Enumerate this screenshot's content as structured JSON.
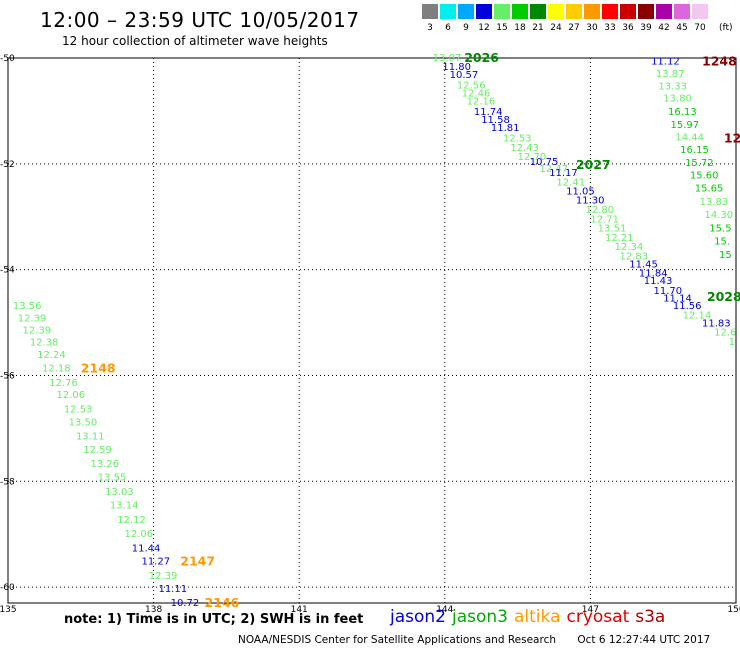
{
  "header": {
    "title": "12:00 – 23:59 UTC 10/05/2017",
    "subtitle": "12 hour collection of altimeter wave heights"
  },
  "scale": {
    "unit": "(ft)",
    "bins": [
      {
        "label": "3",
        "color": "#7f7f7f"
      },
      {
        "label": "6",
        "color": "#00eeee"
      },
      {
        "label": "9",
        "color": "#00a8ff"
      },
      {
        "label": "12",
        "color": "#0000dd"
      },
      {
        "label": "15",
        "color": "#66ee66"
      },
      {
        "label": "18",
        "color": "#00cc00"
      },
      {
        "label": "21",
        "color": "#008800"
      },
      {
        "label": "24",
        "color": "#ffff00"
      },
      {
        "label": "27",
        "color": "#ffcc00"
      },
      {
        "label": "30",
        "color": "#ff9900"
      },
      {
        "label": "33",
        "color": "#ff0000"
      },
      {
        "label": "36",
        "color": "#cc0000"
      },
      {
        "label": "39",
        "color": "#880000"
      },
      {
        "label": "42",
        "color": "#aa00aa"
      },
      {
        "label": "45",
        "color": "#dd66dd"
      },
      {
        "label": "70",
        "color": "#f2c8f2"
      }
    ]
  },
  "map": {
    "lat_ticks": [
      "-50",
      "-52",
      "-54",
      "-56",
      "-58",
      "-60"
    ],
    "lon_ticks": [
      "135",
      "138",
      "141",
      "144",
      "147",
      "150"
    ],
    "lat_range": [
      -50,
      -60.3
    ],
    "lon_range": [
      135,
      150
    ]
  },
  "tracks": [
    {
      "tag": "2148",
      "tag_lon": 136.5,
      "tag_lat": -55.85,
      "tag_color": "#ff9900",
      "points": [
        {
          "v": "13.56",
          "lon": 135.1,
          "lat": -54.67,
          "c": "#66ee66"
        },
        {
          "v": "12.39",
          "lon": 135.2,
          "lat": -54.9,
          "c": "#66ee66"
        },
        {
          "v": "12.39",
          "lon": 135.3,
          "lat": -55.13,
          "c": "#66ee66"
        },
        {
          "v": "12.38",
          "lon": 135.45,
          "lat": -55.36,
          "c": "#66ee66"
        },
        {
          "v": "12.24",
          "lon": 135.6,
          "lat": -55.59,
          "c": "#66ee66"
        },
        {
          "v": "12.18",
          "lon": 135.7,
          "lat": -55.85,
          "c": "#66ee66"
        },
        {
          "v": "12.76",
          "lon": 135.85,
          "lat": -56.12,
          "c": "#66ee66"
        },
        {
          "v": "12.06",
          "lon": 136.0,
          "lat": -56.35,
          "c": "#66ee66"
        },
        {
          "v": "12.53",
          "lon": 136.15,
          "lat": -56.62,
          "c": "#66ee66"
        },
        {
          "v": "13.50",
          "lon": 136.25,
          "lat": -56.87,
          "c": "#66ee66"
        },
        {
          "v": "13.11",
          "lon": 136.4,
          "lat": -57.13,
          "c": "#66ee66"
        },
        {
          "v": "12.59",
          "lon": 136.55,
          "lat": -57.39,
          "c": "#66ee66"
        },
        {
          "v": "13.26",
          "lon": 136.7,
          "lat": -57.65,
          "c": "#66ee66"
        },
        {
          "v": "13.55",
          "lon": 136.85,
          "lat": -57.91,
          "c": "#66ee66"
        },
        {
          "v": "13.03",
          "lon": 137.0,
          "lat": -58.18,
          "c": "#66ee66"
        },
        {
          "v": "13.14",
          "lon": 137.1,
          "lat": -58.44,
          "c": "#66ee66"
        },
        {
          "v": "12.12",
          "lon": 137.25,
          "lat": -58.71,
          "c": "#66ee66"
        },
        {
          "v": "12.06",
          "lon": 137.4,
          "lat": -58.98,
          "c": "#66ee66"
        }
      ]
    },
    {
      "tag": "2147",
      "tag_lon": 138.55,
      "tag_lat": -59.5,
      "tag_color": "#ff9900",
      "points": [
        {
          "v": "11.44",
          "lon": 137.55,
          "lat": -59.25,
          "c": "#0000dd"
        },
        {
          "v": "11.27",
          "lon": 137.75,
          "lat": -59.5,
          "c": "#0000dd"
        },
        {
          "v": "12.39",
          "lon": 137.9,
          "lat": -59.77,
          "c": "#66ee66"
        },
        {
          "v": "11.11",
          "lon": 138.1,
          "lat": -60.02,
          "c": "#0000dd"
        }
      ]
    },
    {
      "tag": "2146",
      "tag_lon": 139.05,
      "tag_lat": -60.28,
      "tag_color": "#ff9900",
      "points": [
        {
          "v": "10.72",
          "lon": 138.35,
          "lat": -60.28,
          "c": "#0000dd"
        }
      ]
    },
    {
      "tag": "2026",
      "tag_lon": 144.4,
      "tag_lat": -49.98,
      "tag_color": "#008800",
      "points": [
        {
          "v": "13.07",
          "lon": 143.75,
          "lat": -49.98,
          "c": "#66ee66"
        },
        {
          "v": "11.80",
          "lon": 143.95,
          "lat": -50.15,
          "c": "#0000dd"
        },
        {
          "v": "10.57",
          "lon": 144.1,
          "lat": -50.3,
          "c": "#0000dd"
        },
        {
          "v": "12.56",
          "lon": 144.25,
          "lat": -50.5,
          "c": "#66ee66"
        },
        {
          "v": "12.46",
          "lon": 144.35,
          "lat": -50.65,
          "c": "#66ee66"
        },
        {
          "v": "12.16",
          "lon": 144.45,
          "lat": -50.8,
          "c": "#66ee66"
        },
        {
          "v": "11.74",
          "lon": 144.6,
          "lat": -51.0,
          "c": "#0000dd"
        },
        {
          "v": "11.58",
          "lon": 144.75,
          "lat": -51.15,
          "c": "#0000dd"
        },
        {
          "v": "11.81",
          "lon": 144.95,
          "lat": -51.3,
          "c": "#0000dd"
        },
        {
          "v": "12.53",
          "lon": 145.2,
          "lat": -51.5,
          "c": "#66ee66"
        },
        {
          "v": "12.43",
          "lon": 145.35,
          "lat": -51.68,
          "c": "#66ee66"
        },
        {
          "v": "12.70",
          "lon": 145.5,
          "lat": -51.85,
          "c": "#66ee66"
        },
        {
          "v": "10.75",
          "lon": 145.75,
          "lat": -51.95,
          "c": "#0000dd"
        }
      ]
    },
    {
      "tag": "2027",
      "tag_lon": 146.7,
      "tag_lat": -52.0,
      "tag_color": "#008800",
      "points": [
        {
          "v": "12.47",
          "lon": 145.95,
          "lat": -52.08,
          "c": "#66ee66"
        },
        {
          "v": "11.17",
          "lon": 146.15,
          "lat": -52.15,
          "c": "#0000dd"
        },
        {
          "v": "12.41",
          "lon": 146.3,
          "lat": -52.33,
          "c": "#66ee66"
        },
        {
          "v": "11.05",
          "lon": 146.5,
          "lat": -52.5,
          "c": "#0000dd"
        },
        {
          "v": "11.30",
          "lon": 146.7,
          "lat": -52.67,
          "c": "#0000dd"
        },
        {
          "v": "12.80",
          "lon": 146.9,
          "lat": -52.85,
          "c": "#66ee66"
        },
        {
          "v": "12.71",
          "lon": 147.0,
          "lat": -53.03,
          "c": "#66ee66"
        },
        {
          "v": "13.51",
          "lon": 147.15,
          "lat": -53.2,
          "c": "#66ee66"
        },
        {
          "v": "12.21",
          "lon": 147.3,
          "lat": -53.38,
          "c": "#66ee66"
        },
        {
          "v": "12.34",
          "lon": 147.5,
          "lat": -53.55,
          "c": "#66ee66"
        },
        {
          "v": "12.83",
          "lon": 147.6,
          "lat": -53.73,
          "c": "#66ee66"
        },
        {
          "v": "11.45",
          "lon": 147.8,
          "lat": -53.88,
          "c": "#0000dd"
        },
        {
          "v": "11.84",
          "lon": 148.0,
          "lat": -54.05,
          "c": "#0000dd"
        },
        {
          "v": "11.43",
          "lon": 148.1,
          "lat": -54.2,
          "c": "#0000dd"
        },
        {
          "v": "11.70",
          "lon": 148.3,
          "lat": -54.38,
          "c": "#0000dd"
        }
      ]
    },
    {
      "tag": "2028",
      "tag_lon": 149.4,
      "tag_lat": -54.5,
      "tag_color": "#008800",
      "points": [
        {
          "v": "11.14",
          "lon": 148.5,
          "lat": -54.53,
          "c": "#0000dd"
        },
        {
          "v": "11.56",
          "lon": 148.7,
          "lat": -54.67,
          "c": "#0000dd"
        },
        {
          "v": "12.14",
          "lon": 148.9,
          "lat": -54.85,
          "c": "#66ee66"
        },
        {
          "v": "11.83",
          "lon": 149.3,
          "lat": -55.0,
          "c": "#0000dd"
        },
        {
          "v": "12.6",
          "lon": 149.55,
          "lat": -55.17,
          "c": "#66ee66"
        },
        {
          "v": "1",
          "lon": 149.85,
          "lat": -55.35,
          "c": "#66ee66"
        }
      ]
    },
    {
      "tag": "1248",
      "tag_lon": 149.3,
      "tag_lat": -50.05,
      "tag_color": "#880000",
      "points": [
        {
          "v": "11.12",
          "lon": 148.25,
          "lat": -50.05,
          "c": "#0000dd"
        },
        {
          "v": "13.87",
          "lon": 148.35,
          "lat": -50.28,
          "c": "#66ee66"
        },
        {
          "v": "13.33",
          "lon": 148.4,
          "lat": -50.52,
          "c": "#66ee66"
        },
        {
          "v": "13.80",
          "lon": 148.5,
          "lat": -50.75,
          "c": "#66ee66"
        },
        {
          "v": "16.13",
          "lon": 148.6,
          "lat": -51.0,
          "c": "#00cc00"
        },
        {
          "v": "15.97",
          "lon": 148.65,
          "lat": -51.25,
          "c": "#00cc00"
        },
        {
          "v": "14.44",
          "lon": 148.75,
          "lat": -51.48,
          "c": "#66ee66"
        },
        {
          "v": "16.15",
          "lon": 148.85,
          "lat": -51.72,
          "c": "#00cc00"
        },
        {
          "v": "15.72",
          "lon": 148.95,
          "lat": -51.97,
          "c": "#00cc00"
        },
        {
          "v": "15.60",
          "lon": 149.05,
          "lat": -52.2,
          "c": "#00cc00"
        },
        {
          "v": "15.65",
          "lon": 149.15,
          "lat": -52.45,
          "c": "#00cc00"
        },
        {
          "v": "13.83",
          "lon": 149.25,
          "lat": -52.7,
          "c": "#66ee66"
        },
        {
          "v": "14.30",
          "lon": 149.35,
          "lat": -52.95,
          "c": "#66ee66"
        },
        {
          "v": "15.5",
          "lon": 149.45,
          "lat": -53.2,
          "c": "#00cc00"
        },
        {
          "v": "15.",
          "lon": 149.55,
          "lat": -53.45,
          "c": "#00cc00"
        },
        {
          "v": "15",
          "lon": 149.65,
          "lat": -53.7,
          "c": "#00cc00"
        }
      ]
    },
    {
      "tag": "12",
      "tag_lon": 149.75,
      "tag_lat": -51.5,
      "tag_color": "#880000",
      "points": []
    }
  ],
  "footer": {
    "note": "note:  1) Time is in UTC;  2) SWH is in feet",
    "legend": [
      {
        "name": "jason2",
        "color": "#0000dd"
      },
      {
        "name": "jason3",
        "color": "#00aa00"
      },
      {
        "name": "altika",
        "color": "#ff9900"
      },
      {
        "name": "cryosat",
        "color": "#dd0000"
      },
      {
        "name": "s3a",
        "color": "#aa0000"
      }
    ],
    "credit_org": "NOAA/NESDIS Center for Satellite Applications and Research",
    "credit_time": "Oct  6 12:27:44 UTC 2017"
  }
}
